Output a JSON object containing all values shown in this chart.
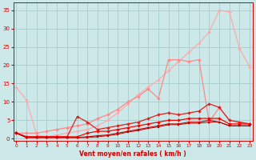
{
  "xlabel": "Vent moyen/en rafales ( km/h )",
  "xticks": [
    0,
    1,
    2,
    3,
    4,
    5,
    6,
    7,
    8,
    9,
    10,
    11,
    12,
    13,
    14,
    15,
    16,
    17,
    18,
    19,
    20,
    21,
    22,
    23
  ],
  "yticks": [
    0,
    5,
    10,
    15,
    20,
    25,
    30,
    35
  ],
  "ylim": [
    -0.5,
    37
  ],
  "xlim": [
    -0.3,
    23.3
  ],
  "bg_color": "#cce8e8",
  "grid_color": "#aacccc",
  "lines": [
    {
      "x": [
        0,
        1,
        2,
        3,
        4,
        5,
        6,
        7,
        8,
        9,
        10,
        11,
        12,
        13,
        14,
        15,
        16,
        17,
        18,
        19,
        20,
        21,
        22,
        23
      ],
      "y": [
        14,
        10.5,
        1.0,
        0.5,
        1.0,
        1.5,
        2.0,
        2.5,
        3.5,
        5.0,
        7.0,
        9.5,
        12.0,
        14.0,
        16.0,
        18.5,
        21.0,
        23.5,
        26.0,
        29.0,
        35.0,
        34.5,
        24.5,
        19.5
      ],
      "color": "#ffaaaa",
      "marker": "D",
      "markersize": 2.0,
      "linewidth": 0.9
    },
    {
      "x": [
        0,
        1,
        2,
        3,
        4,
        5,
        6,
        7,
        8,
        9,
        10,
        11,
        12,
        13,
        14,
        15,
        16,
        17,
        18,
        19,
        20,
        21,
        22,
        23
      ],
      "y": [
        1.5,
        1.5,
        1.5,
        2.0,
        2.5,
        3.0,
        3.5,
        4.0,
        5.5,
        6.5,
        8.0,
        10.0,
        11.5,
        13.5,
        11.0,
        21.5,
        21.5,
        21.0,
        21.5,
        4.5,
        8.5,
        5.0,
        4.5,
        4.0
      ],
      "color": "#ff8888",
      "marker": "D",
      "markersize": 2.0,
      "linewidth": 0.9
    },
    {
      "x": [
        0,
        1,
        2,
        3,
        4,
        5,
        6,
        7,
        8,
        9,
        10,
        11,
        12,
        13,
        14,
        15,
        16,
        17,
        18,
        19,
        20,
        21,
        22,
        23
      ],
      "y": [
        1.5,
        0.5,
        0.5,
        0.5,
        0.5,
        0.5,
        6.0,
        4.5,
        2.5,
        3.0,
        3.5,
        4.0,
        4.5,
        5.5,
        6.5,
        7.0,
        6.5,
        7.0,
        7.5,
        9.5,
        8.5,
        5.0,
        4.5,
        4.0
      ],
      "color": "#dd2222",
      "marker": "D",
      "markersize": 2.0,
      "linewidth": 0.9
    },
    {
      "x": [
        0,
        1,
        2,
        3,
        4,
        5,
        6,
        7,
        8,
        9,
        10,
        11,
        12,
        13,
        14,
        15,
        16,
        17,
        18,
        19,
        20,
        21,
        22,
        23
      ],
      "y": [
        1.5,
        0.5,
        0.5,
        0.5,
        0.5,
        0.5,
        0.5,
        1.5,
        2.0,
        2.0,
        2.5,
        3.0,
        3.5,
        4.0,
        4.5,
        5.0,
        5.0,
        5.5,
        5.5,
        5.5,
        5.5,
        4.0,
        4.0,
        4.0
      ],
      "color": "#ff0000",
      "marker": "D",
      "markersize": 2.0,
      "linewidth": 0.9
    },
    {
      "x": [
        0,
        1,
        2,
        3,
        4,
        5,
        6,
        7,
        8,
        9,
        10,
        11,
        12,
        13,
        14,
        15,
        16,
        17,
        18,
        19,
        20,
        21,
        22,
        23
      ],
      "y": [
        1.5,
        0.3,
        0.3,
        0.3,
        0.3,
        0.3,
        0.3,
        0.5,
        0.8,
        1.0,
        1.5,
        2.0,
        2.5,
        3.0,
        3.5,
        4.0,
        4.0,
        4.5,
        4.5,
        5.0,
        4.5,
        3.5,
        3.5,
        3.5
      ],
      "color": "#cc0000",
      "marker": "s",
      "markersize": 1.8,
      "linewidth": 0.8
    },
    {
      "x": [
        0,
        1,
        2,
        3,
        4,
        5,
        6,
        7,
        8,
        9,
        10,
        11,
        12,
        13,
        14,
        15,
        16,
        17,
        18,
        19,
        20,
        21,
        22,
        23
      ],
      "y": [
        1.5,
        0.3,
        0.3,
        0.3,
        0.3,
        0.3,
        0.3,
        0.3,
        0.5,
        0.8,
        1.2,
        1.8,
        2.2,
        2.8,
        3.2,
        3.8,
        3.8,
        4.2,
        4.2,
        4.5,
        4.5,
        3.5,
        3.5,
        3.5
      ],
      "color": "#bb0000",
      "marker": "s",
      "markersize": 1.5,
      "linewidth": 0.7
    }
  ]
}
